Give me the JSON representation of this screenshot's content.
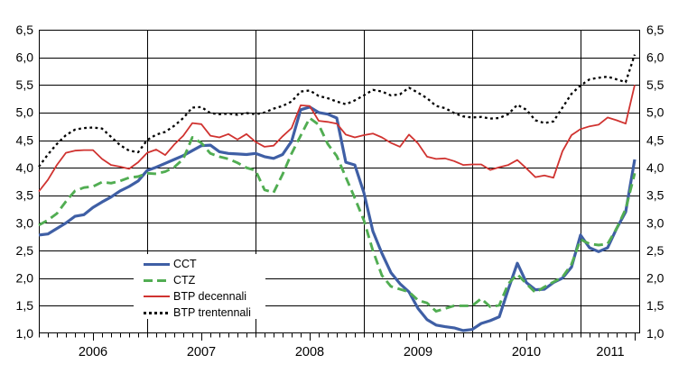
{
  "chart_data": {
    "type": "line",
    "title": "",
    "xlabel": "",
    "ylabel": "",
    "x_start": "2006-01",
    "x_end": "2011-07",
    "x_frequency": "monthly",
    "x_tick_labels": [
      "2006",
      "2007",
      "2008",
      "2009",
      "2010",
      "2011"
    ],
    "y_tick_labels": [
      "6,5",
      "6,0",
      "5,5",
      "5,0",
      "4,5",
      "4,0",
      "3,5",
      "3,0",
      "2,5",
      "2,0",
      "1,5",
      "1,0"
    ],
    "ylim": [
      1.0,
      6.5
    ],
    "y_step": 0.5,
    "grid": "on",
    "y_axis_labels_both_sides": true,
    "legend_position": "inside-bottom-left",
    "series": [
      {
        "name": "CCT",
        "color": "#3f5fa5",
        "style": "solid",
        "width": 3.2,
        "values": [
          2.78,
          2.8,
          2.9,
          3.0,
          3.12,
          3.15,
          3.28,
          3.38,
          3.47,
          3.58,
          3.66,
          3.76,
          3.95,
          4.01,
          4.08,
          4.15,
          4.22,
          4.31,
          4.4,
          4.41,
          4.29,
          4.26,
          4.25,
          4.24,
          4.26,
          4.2,
          4.17,
          4.24,
          4.48,
          5.05,
          5.1,
          5.0,
          4.97,
          4.9,
          4.1,
          4.05,
          3.55,
          2.85,
          2.45,
          2.1,
          1.9,
          1.75,
          1.45,
          1.25,
          1.15,
          1.12,
          1.1,
          1.05,
          1.07,
          1.18,
          1.23,
          1.3,
          1.8,
          2.27,
          1.92,
          1.79,
          1.8,
          1.92,
          2.0,
          2.2,
          2.78,
          2.55,
          2.48,
          2.55,
          2.9,
          3.2,
          4.15
        ]
      },
      {
        "name": "CTZ",
        "color": "#51ad52",
        "style": "dashed",
        "width": 2.9,
        "values": [
          2.96,
          3.05,
          3.17,
          3.39,
          3.58,
          3.64,
          3.66,
          3.74,
          3.72,
          3.76,
          3.82,
          3.84,
          3.9,
          3.89,
          3.93,
          4.01,
          4.16,
          4.55,
          4.45,
          4.26,
          4.2,
          4.16,
          4.09,
          4.0,
          3.95,
          3.6,
          3.55,
          3.88,
          4.26,
          4.58,
          4.9,
          4.78,
          4.43,
          4.21,
          3.83,
          3.45,
          3.05,
          2.5,
          2.05,
          1.85,
          1.8,
          1.75,
          1.6,
          1.55,
          1.4,
          1.45,
          1.5,
          1.5,
          1.5,
          1.63,
          1.48,
          1.51,
          1.9,
          2.07,
          1.9,
          1.74,
          1.84,
          1.93,
          2.02,
          2.25,
          2.7,
          2.62,
          2.6,
          2.62,
          2.9,
          3.25,
          3.9
        ]
      },
      {
        "name": "BTP decennali",
        "color": "#d03330",
        "style": "solid",
        "width": 1.8,
        "values": [
          3.57,
          3.78,
          4.05,
          4.27,
          4.31,
          4.32,
          4.32,
          4.16,
          4.05,
          4.02,
          3.98,
          4.1,
          4.27,
          4.33,
          4.23,
          4.42,
          4.58,
          4.81,
          4.79,
          4.58,
          4.55,
          4.61,
          4.51,
          4.61,
          4.47,
          4.38,
          4.4,
          4.57,
          4.72,
          5.13,
          5.12,
          4.85,
          4.83,
          4.8,
          4.6,
          4.55,
          4.59,
          4.62,
          4.55,
          4.45,
          4.38,
          4.6,
          4.44,
          4.2,
          4.16,
          4.17,
          4.12,
          4.05,
          4.06,
          4.06,
          3.96,
          4.01,
          4.05,
          4.14,
          3.99,
          3.83,
          3.86,
          3.82,
          4.3,
          4.59,
          4.7,
          4.75,
          4.78,
          4.91,
          4.86,
          4.8,
          5.5
        ]
      },
      {
        "name": "BTP trentennali",
        "color": "#000000",
        "style": "dotted",
        "width": 2.3,
        "values": [
          4.02,
          4.24,
          4.43,
          4.59,
          4.69,
          4.72,
          4.73,
          4.71,
          4.56,
          4.41,
          4.31,
          4.28,
          4.5,
          4.6,
          4.65,
          4.76,
          4.9,
          5.09,
          5.1,
          4.99,
          4.97,
          4.98,
          4.96,
          4.99,
          4.97,
          5.0,
          5.07,
          5.12,
          5.2,
          5.38,
          5.4,
          5.3,
          5.26,
          5.2,
          5.15,
          5.22,
          5.31,
          5.41,
          5.38,
          5.31,
          5.33,
          5.45,
          5.36,
          5.26,
          5.12,
          5.08,
          4.99,
          4.93,
          4.91,
          4.92,
          4.89,
          4.9,
          4.97,
          5.14,
          5.05,
          4.86,
          4.81,
          4.84,
          5.09,
          5.34,
          5.49,
          5.6,
          5.63,
          5.65,
          5.6,
          5.55,
          6.05
        ]
      }
    ]
  }
}
